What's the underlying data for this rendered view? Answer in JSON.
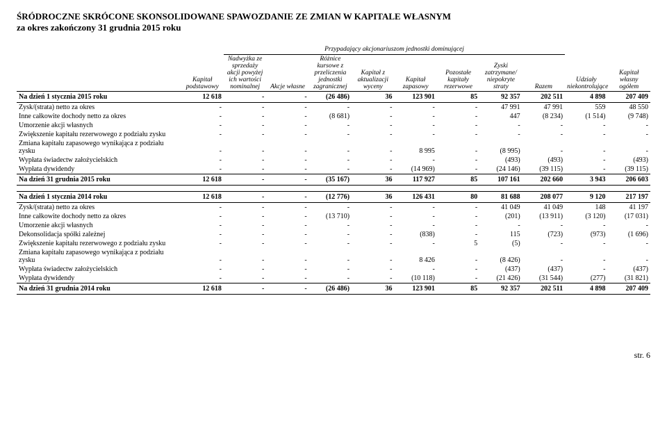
{
  "header": {
    "title": "ŚRÓDROCZNE SKRÓCONE SKONSOLIDOWANE SPAWOZDANIE ZE ZMIAN W KAPITALE WŁASNYM",
    "subtitle": "za okres zakończony 31 grudnia 2015 roku"
  },
  "columns": {
    "super": "Przypadający akcjonariuszom jednostki dominującej",
    "c1": "Kapitał podstawowy",
    "c2": "Nadwyżka ze sprzedaży akcji powyżej ich wartości nominalnej",
    "c3": "Akcje własne",
    "c4": "Różnice kursowe z przeliczenia jednostki zagranicznej",
    "c5": "Kapitał z aktualizacji wyceny",
    "c6": "Kapitał zapasowy",
    "c7": "Pozostałe kapitały rezerwowe",
    "c8": "Zyski zatrzymane/ niepokryte straty",
    "c9": "Razem",
    "c10": "Udziały niekontrolujące",
    "c11": "Kapitał własny ogółem"
  },
  "sections": [
    {
      "head": {
        "label": "Na dzień 1 stycznia 2015 roku",
        "v": [
          "12 618",
          "-",
          "-",
          "(26 486)",
          "36",
          "123 901",
          "85",
          "92 357",
          "202 511",
          "4 898",
          "207 409"
        ]
      },
      "rows": [
        {
          "label": "Zysk/(strata) netto za okres",
          "v": [
            "-",
            "-",
            "-",
            "-",
            "-",
            "-",
            "-",
            "47 991",
            "47 991",
            "559",
            "48 550"
          ]
        },
        {
          "label": "Inne całkowite dochody netto za okres",
          "v": [
            "-",
            "-",
            "-",
            "(8 681)",
            "-",
            "-",
            "-",
            "447",
            "(8 234)",
            "(1 514)",
            "(9 748)"
          ]
        },
        {
          "label": "Umorzenie akcji własnych",
          "v": [
            "-",
            "-",
            "-",
            "-",
            "-",
            "-",
            "-",
            "-",
            "-",
            "-",
            "-"
          ]
        },
        {
          "label": "Zwiększenie kapitału rezerwowego z podziału zysku",
          "v": [
            "-",
            "-",
            "-",
            "-",
            "-",
            "-",
            "-",
            "-",
            "-",
            "-",
            "-"
          ]
        },
        {
          "label": "Zmiana kapitału zapasowego wynikająca z podziału zysku",
          "v": [
            "-",
            "-",
            "-",
            "-",
            "-",
            "8 995",
            "-",
            "(8 995)",
            "-",
            "-",
            "-"
          ]
        },
        {
          "label": "Wypłata świadectw założycielskich",
          "v": [
            "-",
            "-",
            "-",
            "-",
            "-",
            "-",
            "-",
            "(493)",
            "(493)",
            "-",
            "(493)"
          ]
        },
        {
          "label": "Wypłata dywidendy",
          "v": [
            "-",
            "-",
            "-",
            "-",
            "-",
            "(14 969)",
            "-",
            "(24 146)",
            "(39 115)",
            "-",
            "(39 115)"
          ]
        }
      ],
      "foot": {
        "label": "Na dzień 31 grudnia 2015 roku",
        "v": [
          "12 618",
          "-",
          "-",
          "(35 167)",
          "36",
          "117 927",
          "85",
          "107 161",
          "202 660",
          "3 943",
          "206 603"
        ]
      }
    },
    {
      "head": {
        "label": "Na dzień 1 stycznia 2014 roku",
        "v": [
          "12 618",
          "-",
          "-",
          "(12 776)",
          "36",
          "126 431",
          "80",
          "81 688",
          "208 077",
          "9 120",
          "217 197"
        ]
      },
      "rows": [
        {
          "label": "Zysk/(strata) netto za okres",
          "v": [
            "-",
            "-",
            "-",
            "-",
            "-",
            "-",
            "-",
            "41 049",
            "41 049",
            "148",
            "41 197"
          ]
        },
        {
          "label": "Inne całkowite dochody netto za okres",
          "v": [
            "-",
            "-",
            "-",
            "(13 710)",
            "-",
            "-",
            "-",
            "(201)",
            "(13 911)",
            "(3 120)",
            "(17 031)"
          ]
        },
        {
          "label": "Umorzenie akcji własnych",
          "v": [
            "-",
            "-",
            "-",
            "-",
            "-",
            "-",
            "-",
            "-",
            "-",
            "-",
            "-"
          ]
        },
        {
          "label": "Dekonsolidacja spółki zależnej",
          "v": [
            "-",
            "-",
            "-",
            "-",
            "-",
            "(838)",
            "-",
            "115",
            "(723)",
            "(973)",
            "(1 696)"
          ]
        },
        {
          "label": "Zwiększenie kapitału rezerwowego z podziału zysku",
          "v": [
            "-",
            "-",
            "-",
            "-",
            "-",
            "-",
            "5",
            "(5)",
            "-",
            "-",
            "-"
          ]
        },
        {
          "label": "Zmiana kapitału zapasowego wynikająca z podziału zysku",
          "v": [
            "-",
            "-",
            "-",
            "-",
            "-",
            "8 426",
            "-",
            "(8 426)",
            "-",
            "-",
            "-"
          ]
        },
        {
          "label": "Wypłata świadectw założycielskich",
          "v": [
            "-",
            "-",
            "-",
            "-",
            "-",
            "-",
            "-",
            "(437)",
            "(437)",
            "-",
            "(437)"
          ]
        },
        {
          "label": "Wypłata dywidendy",
          "v": [
            "-",
            "-",
            "-",
            "-",
            "-",
            "(10 118)",
            "-",
            "(21 426)",
            "(31 544)",
            "(277)",
            "(31 821)"
          ]
        }
      ],
      "foot": {
        "label": "Na dzień 31 grudnia 2014 roku",
        "v": [
          "12 618",
          "-",
          "-",
          "(26 486)",
          "36",
          "123 901",
          "85",
          "92 357",
          "202 511",
          "4 898",
          "207 409"
        ]
      }
    }
  ],
  "page": "str. 6"
}
